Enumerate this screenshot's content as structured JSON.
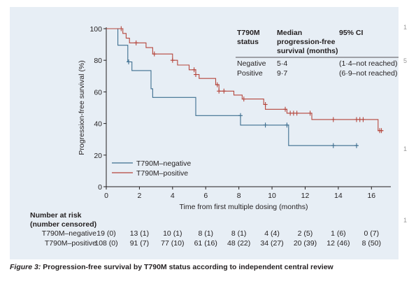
{
  "chart_data": {
    "type": "line",
    "subtype": "kaplan-meier",
    "title": "",
    "xlabel": "Time from first multiple dosing (months)",
    "ylabel": "Progression-free survival (%)",
    "xlim": [
      0,
      17
    ],
    "ylim": [
      0,
      100
    ],
    "xticks": [
      0,
      2,
      4,
      6,
      8,
      10,
      12,
      14,
      16
    ],
    "yticks": [
      0,
      20,
      40,
      60,
      80,
      100
    ],
    "grid": false,
    "legend_position": "bottom-left",
    "series": [
      {
        "name": "T790M–negative",
        "color": "#3d6e8f",
        "steps": [
          [
            0,
            100
          ],
          [
            0.7,
            100
          ],
          [
            0.7,
            89.5
          ],
          [
            1.3,
            89.5
          ],
          [
            1.3,
            79
          ],
          [
            1.55,
            79
          ],
          [
            1.55,
            73.5
          ],
          [
            2.7,
            73.5
          ],
          [
            2.7,
            62
          ],
          [
            2.8,
            62
          ],
          [
            2.8,
            56.5
          ],
          [
            5.4,
            56.5
          ],
          [
            5.4,
            45
          ],
          [
            8.1,
            45
          ],
          [
            8.1,
            39
          ],
          [
            11.0,
            39
          ],
          [
            11.0,
            26
          ],
          [
            15.2,
            26
          ]
        ],
        "censored": [
          [
            1.35,
            79
          ],
          [
            8.1,
            45
          ],
          [
            9.6,
            39
          ],
          [
            10.9,
            39
          ],
          [
            13.7,
            26
          ],
          [
            15.1,
            26
          ]
        ]
      },
      {
        "name": "T790M–positive",
        "color": "#b5463c",
        "steps": [
          [
            0,
            100
          ],
          [
            1.0,
            100
          ],
          [
            1.0,
            97
          ],
          [
            1.2,
            97
          ],
          [
            1.2,
            94
          ],
          [
            1.4,
            94
          ],
          [
            1.4,
            91
          ],
          [
            2.4,
            91
          ],
          [
            2.4,
            88
          ],
          [
            2.8,
            88
          ],
          [
            2.8,
            84
          ],
          [
            4.0,
            84
          ],
          [
            4.0,
            80
          ],
          [
            4.3,
            80
          ],
          [
            4.3,
            77
          ],
          [
            5.0,
            77
          ],
          [
            5.0,
            74
          ],
          [
            5.4,
            74
          ],
          [
            5.4,
            71
          ],
          [
            5.6,
            71
          ],
          [
            5.6,
            68.5
          ],
          [
            6.6,
            68.5
          ],
          [
            6.6,
            64.5
          ],
          [
            6.8,
            64.5
          ],
          [
            6.8,
            60.5
          ],
          [
            7.7,
            60.5
          ],
          [
            7.7,
            58
          ],
          [
            8.2,
            58
          ],
          [
            8.2,
            55.5
          ],
          [
            9.5,
            55.5
          ],
          [
            9.5,
            52
          ],
          [
            9.6,
            52
          ],
          [
            9.6,
            49
          ],
          [
            10.9,
            49
          ],
          [
            10.9,
            46.5
          ],
          [
            12.4,
            46.5
          ],
          [
            12.4,
            42.5
          ],
          [
            16.4,
            42.5
          ],
          [
            16.4,
            35.5
          ],
          [
            16.7,
            35.5
          ]
        ],
        "censored": [
          [
            0.9,
            100
          ],
          [
            1.8,
            91
          ],
          [
            2.9,
            84
          ],
          [
            4.0,
            80
          ],
          [
            5.3,
            74
          ],
          [
            5.4,
            71
          ],
          [
            6.7,
            64.5
          ],
          [
            6.8,
            60.5
          ],
          [
            7.1,
            60.5
          ],
          [
            8.3,
            55.5
          ],
          [
            9.6,
            52
          ],
          [
            10.8,
            49
          ],
          [
            11.1,
            46.5
          ],
          [
            11.3,
            46.5
          ],
          [
            11.5,
            46.5
          ],
          [
            12.3,
            46.5
          ],
          [
            13.7,
            42.5
          ],
          [
            15.1,
            42.5
          ],
          [
            15.3,
            42.5
          ],
          [
            15.5,
            42.5
          ],
          [
            16.5,
            35.5
          ],
          [
            16.6,
            35.5
          ]
        ]
      }
    ],
    "median_table": {
      "headers": [
        "T790M status",
        "Median progression-free survival (months)",
        "95% CI"
      ],
      "rows": [
        [
          "Negative",
          "5·4",
          "(1·4–not reached)"
        ],
        [
          "Positive",
          "9·7",
          "(6·9–not reached)"
        ]
      ]
    },
    "risk_table": {
      "title_line1": "Number at risk",
      "title_line2": "(number censored)",
      "rows": [
        {
          "label": "T790M–negative",
          "values": [
            "19 (0)",
            "13 (1)",
            "10 (1)",
            "8 (1)",
            "8 (1)",
            "4 (4)",
            "2 (5)",
            "1 (6)",
            "0 (7)"
          ]
        },
        {
          "label": "T790M–positive",
          "values": [
            "108 (0)",
            "91 (7)",
            "77 (10)",
            "61 (16)",
            "48 (22)",
            "34 (27)",
            "20 (39)",
            "12 (46)",
            "8 (50)"
          ]
        }
      ]
    }
  },
  "caption": {
    "figure_label": "Figure 3:",
    "text": "Progression-free survival by T790M status according to independent central review"
  },
  "edge_marks": [
    "1",
    "5",
    "1",
    "1"
  ]
}
